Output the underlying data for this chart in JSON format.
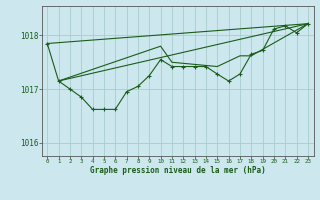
{
  "bg_color": "#cce8ee",
  "grid_color": "#aacccc",
  "line_color": "#1a5c1a",
  "title": "Graphe pression niveau de la mer (hPa)",
  "ylim": [
    1015.75,
    1018.55
  ],
  "xlim": [
    -0.5,
    23.5
  ],
  "yticks": [
    1016,
    1017,
    1018
  ],
  "xticks": [
    0,
    1,
    2,
    3,
    4,
    5,
    6,
    7,
    8,
    9,
    10,
    11,
    12,
    13,
    14,
    15,
    16,
    17,
    18,
    19,
    20,
    21,
    22,
    23
  ],
  "main_series": [
    [
      0,
      1017.85
    ],
    [
      1,
      1017.15
    ],
    [
      2,
      1017.0
    ],
    [
      3,
      1016.85
    ],
    [
      4,
      1016.62
    ],
    [
      5,
      1016.62
    ],
    [
      6,
      1016.62
    ],
    [
      7,
      1016.95
    ],
    [
      8,
      1017.05
    ],
    [
      9,
      1017.25
    ],
    [
      10,
      1017.55
    ],
    [
      11,
      1017.42
    ],
    [
      12,
      1017.42
    ],
    [
      13,
      1017.42
    ],
    [
      14,
      1017.42
    ],
    [
      15,
      1017.28
    ],
    [
      16,
      1017.15
    ],
    [
      17,
      1017.28
    ],
    [
      18,
      1017.65
    ],
    [
      19,
      1017.72
    ],
    [
      20,
      1018.12
    ],
    [
      21,
      1018.18
    ],
    [
      22,
      1018.05
    ],
    [
      23,
      1018.22
    ]
  ],
  "line2_series": [
    [
      1,
      1017.15
    ],
    [
      10,
      1017.8
    ],
    [
      11,
      1017.5
    ],
    [
      15,
      1017.42
    ],
    [
      17,
      1017.62
    ],
    [
      18,
      1017.62
    ],
    [
      23,
      1018.22
    ]
  ],
  "line3_series": [
    [
      1,
      1017.15
    ],
    [
      23,
      1018.22
    ]
  ],
  "line4_series": [
    [
      0,
      1017.85
    ],
    [
      23,
      1018.22
    ]
  ]
}
